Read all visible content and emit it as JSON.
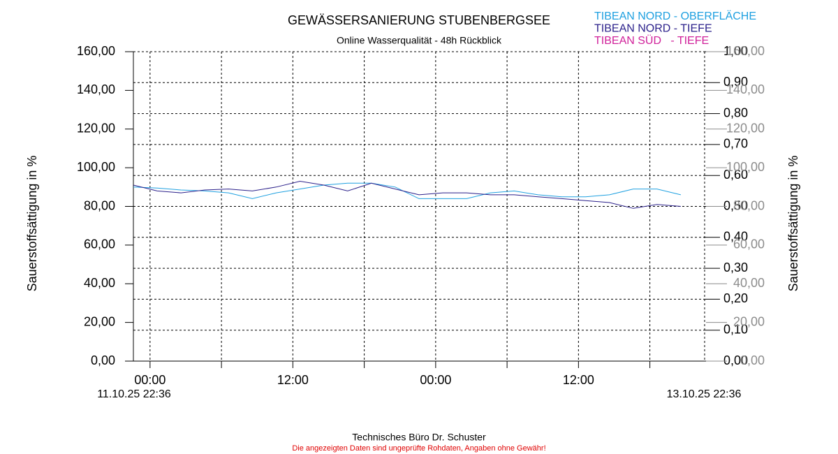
{
  "chart_data": {
    "type": "line",
    "title": "GEWÄSSERSANIERUNG STUBENBERGSEE",
    "subtitle": "Online Wasserqualität - 48h Rückblick",
    "y_label": "Sauerstoffsättigung in %",
    "y2_label": "Sauerstoffsättigung in %",
    "source": "Technisches Büro Dr. Schuster",
    "disclaimer": "Die angezeigten Daten sind ungeprüfte Rohdaten, Angaben ohne Gewähr!",
    "xlim": [
      "11.10.25 22:36",
      "13.10.25 22:36"
    ],
    "xticks": [
      {
        "value": "12.10.25 00:00",
        "label": "00:00"
      },
      {
        "value": "12.10.25 12:00",
        "label": "12:00"
      },
      {
        "value": "13.10.25 00:00",
        "label": "00:00"
      },
      {
        "value": "13.10.25 12:00",
        "label": "12:00"
      }
    ],
    "xminorticks": [
      "12.10.25 06:00",
      "12.10.25 18:00",
      "13.10.25 06:00",
      "13.10.25 18:00"
    ],
    "ylim": [
      0,
      160
    ],
    "yticks": [
      {
        "value": 0,
        "label": "0,00"
      },
      {
        "value": 20,
        "label": "20,00"
      },
      {
        "value": 40,
        "label": "40,00"
      },
      {
        "value": 60,
        "label": "60,00"
      },
      {
        "value": 80,
        "label": "80,00"
      },
      {
        "value": 100,
        "label": "100,00"
      },
      {
        "value": 120,
        "label": "120,00"
      },
      {
        "value": 140,
        "label": "140,00"
      },
      {
        "value": 160,
        "label": "160,00"
      }
    ],
    "y2lim": [
      0,
      1
    ],
    "y2ticks": [
      {
        "value": 0,
        "label": "0,00"
      },
      {
        "value": 0.1,
        "label": "0,10"
      },
      {
        "value": 0.2,
        "label": "0,20"
      },
      {
        "value": 0.3,
        "label": "0,30"
      },
      {
        "value": 0.4,
        "label": "0,40"
      },
      {
        "value": 0.5,
        "label": "0,50"
      },
      {
        "value": 0.6,
        "label": "0,60"
      },
      {
        "value": 0.7,
        "label": "0,70"
      },
      {
        "value": 0.8,
        "label": "0,80"
      },
      {
        "value": 0.9,
        "label": "0,90"
      },
      {
        "value": 1,
        "label": "1,00"
      }
    ],
    "y3lim": [
      0,
      160
    ],
    "y3color": "#8c8c8c",
    "y3ticks": [
      {
        "value": 0,
        "label": "0,00"
      },
      {
        "value": 20,
        "label": "20,00"
      },
      {
        "value": 40,
        "label": "40,00"
      },
      {
        "value": 60,
        "label": "60,00"
      },
      {
        "value": 80,
        "label": "80,00"
      },
      {
        "value": 100,
        "label": "100,00"
      },
      {
        "value": 120,
        "label": "120,00"
      },
      {
        "value": 140,
        "label": "140,00"
      },
      {
        "value": 160,
        "label": "160,00"
      }
    ],
    "grid": true,
    "x": [
      "11.10.25 22:36",
      "12.10.25 00:36",
      "12.10.25 02:36",
      "12.10.25 04:36",
      "12.10.25 06:36",
      "12.10.25 08:36",
      "12.10.25 10:36",
      "12.10.25 12:36",
      "12.10.25 14:36",
      "12.10.25 16:36",
      "12.10.25 18:36",
      "12.10.25 20:36",
      "12.10.25 22:36",
      "13.10.25 00:36",
      "13.10.25 02:36",
      "13.10.25 04:36",
      "13.10.25 06:36",
      "13.10.25 08:36",
      "13.10.25 10:36",
      "13.10.25 12:36",
      "13.10.25 14:36",
      "13.10.25 16:36",
      "13.10.25 18:36",
      "13.10.25 20:36"
    ],
    "series": [
      {
        "name": "TIBEAN NORD - OBERFLÄCHE",
        "color": "#1ea0e0",
        "values": [
          90,
          89.5,
          88.5,
          88,
          87,
          84,
          87,
          89,
          91,
          92,
          92,
          90,
          84,
          84,
          84,
          87,
          88,
          86,
          85,
          85,
          86,
          89,
          89,
          86
        ]
      },
      {
        "name": "TIBEAN NORD - TIEFE",
        "color": "#2a1f8a",
        "values": [
          91,
          88,
          87,
          88.5,
          89,
          88,
          90,
          93,
          91,
          88,
          92,
          89,
          86,
          87,
          87,
          86,
          86,
          85,
          84,
          83,
          82,
          79,
          81,
          80
        ]
      },
      {
        "name": "TIBEAN SÜD   - TIEFE",
        "color": "#d0209a",
        "values": [
          null,
          null,
          null,
          null,
          null,
          null,
          null,
          null,
          null,
          null,
          null,
          null,
          null,
          null,
          null,
          null,
          null,
          null,
          null,
          null,
          null,
          null,
          null,
          null
        ]
      }
    ]
  }
}
